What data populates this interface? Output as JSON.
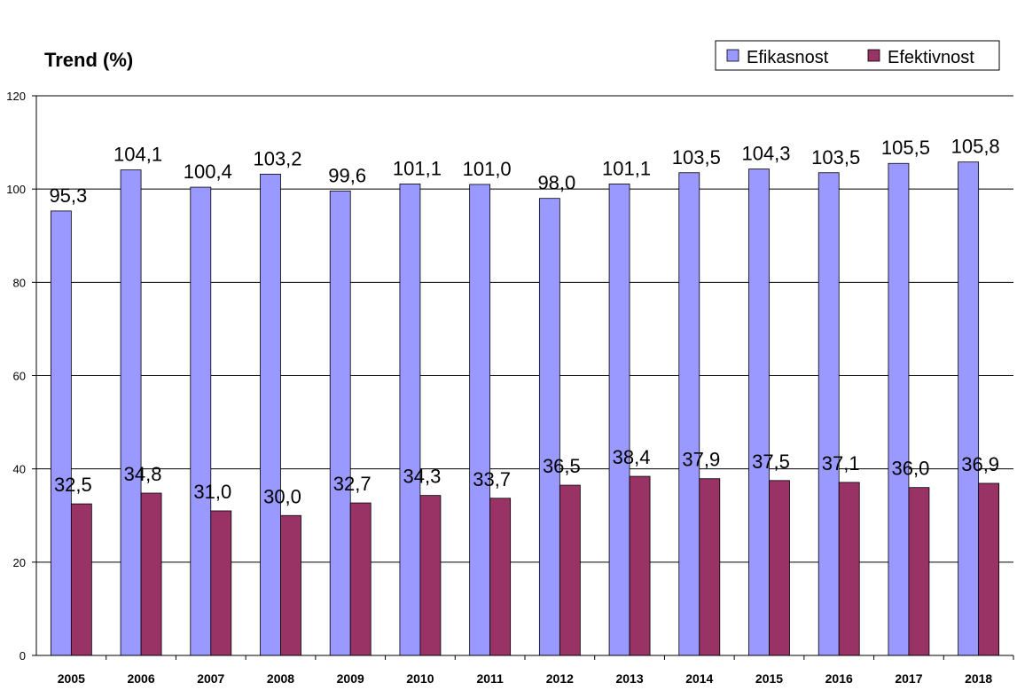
{
  "chart_data": {
    "type": "bar",
    "title": "Trend (%)",
    "xlabel": "",
    "ylabel": "",
    "ylim": [
      0,
      120
    ],
    "yticks": [
      0,
      20,
      40,
      60,
      80,
      100,
      120
    ],
    "grid": true,
    "legend_position": "top-right",
    "categories": [
      "2005",
      "2006",
      "2007",
      "2008",
      "2009",
      "2010",
      "2011",
      "2012",
      "2013",
      "2014",
      "2015",
      "2016",
      "2017",
      "2018"
    ],
    "series": [
      {
        "name": "Efikasnost",
        "color": "#9999ff",
        "values": [
          95.3,
          104.1,
          100.4,
          103.2,
          99.6,
          101.1,
          101.0,
          98.0,
          101.1,
          103.5,
          104.3,
          103.5,
          105.5,
          105.8
        ],
        "labels": [
          "95,3",
          "104,1",
          "100,4",
          "103,2",
          "99,6",
          "101,1",
          "101,0",
          "98,0",
          "101,1",
          "103,5",
          "104,3",
          "103,5",
          "105,5",
          "105,8"
        ]
      },
      {
        "name": "Efektivnost",
        "color": "#993366",
        "values": [
          32.5,
          34.8,
          31.0,
          30.0,
          32.7,
          34.3,
          33.7,
          36.5,
          38.4,
          37.9,
          37.5,
          37.1,
          36.0,
          36.9
        ],
        "labels": [
          "32,5",
          "34,8",
          "31,0",
          "30,0",
          "32,7",
          "34,3",
          "33,7",
          "36,5",
          "38,4",
          "37,9",
          "37,5",
          "37,1",
          "36,0",
          "36,9"
        ]
      }
    ]
  }
}
